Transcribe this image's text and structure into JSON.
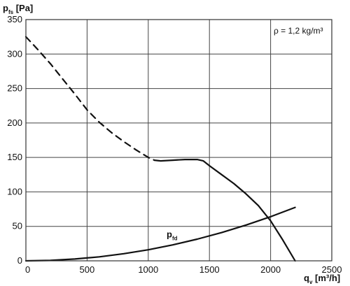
{
  "chart_data": {
    "type": "line",
    "ylabel": {
      "main": "p",
      "sub": "fs",
      "unit": " [Pa]"
    },
    "xlabel": {
      "main": "q",
      "sub": "v",
      "unit": " [m³/h]"
    },
    "annotation": "ρ = 1,2 kg/m³",
    "xlim": [
      0,
      2500
    ],
    "ylim": [
      0,
      350
    ],
    "x_ticks": [
      "0",
      "500",
      "1000",
      "1500",
      "2000",
      "2500"
    ],
    "y_ticks": [
      "0",
      "50",
      "100",
      "150",
      "200",
      "250",
      "300",
      "350"
    ],
    "grid": true,
    "series": [
      {
        "style": "dashed",
        "x": [
          0,
          100,
          200,
          300,
          400,
          500,
          600,
          700,
          800,
          900,
          1000,
          1050,
          1100
        ],
        "y": [
          325,
          306,
          286,
          264,
          242,
          219,
          201,
          186,
          173,
          161,
          150,
          146,
          145
        ]
      },
      {
        "style": "solid",
        "x": [
          1100,
          1200,
          1300,
          1400,
          1450,
          1500,
          1600,
          1700,
          1800,
          1900,
          2000,
          2100,
          2200
        ],
        "y": [
          145,
          146,
          147,
          147,
          145,
          138,
          125,
          112,
          97,
          80,
          58,
          30,
          0
        ]
      },
      {
        "name": {
          "main": "p",
          "sub": "fd"
        },
        "style": "solid",
        "label_at": [
          1150,
          34
        ],
        "x": [
          0,
          200,
          400,
          600,
          800,
          1000,
          1200,
          1400,
          1600,
          1800,
          2000,
          2200
        ],
        "y": [
          0,
          0.6,
          2.6,
          5.8,
          10.3,
          16,
          23.1,
          31.4,
          41,
          51.9,
          64,
          77.5
        ]
      }
    ]
  }
}
